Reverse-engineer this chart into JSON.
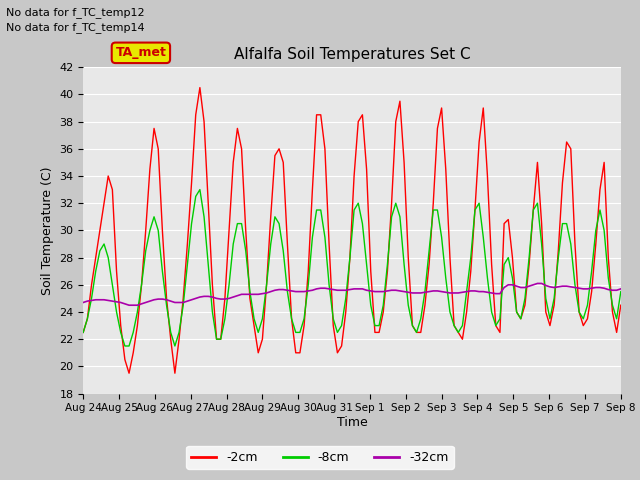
{
  "title": "Alfalfa Soil Temperatures Set C",
  "xlabel": "Time",
  "ylabel": "Soil Temperature (C)",
  "no_data_text": [
    "No data for f_TC_temp12",
    "No data for f_TC_temp14"
  ],
  "legend_label_box": "TA_met",
  "legend_box_facecolor": "#e8e800",
  "legend_box_edgecolor": "#cc0000",
  "legend_box_text_color": "#cc0000",
  "ylim": [
    18,
    42
  ],
  "yticks": [
    18,
    20,
    22,
    24,
    26,
    28,
    30,
    32,
    34,
    36,
    38,
    40,
    42
  ],
  "x_tick_labels": [
    "Aug 24",
    "Aug 25",
    "Aug 26",
    "Aug 27",
    "Aug 28",
    "Aug 29",
    "Aug 30",
    "Aug 31",
    "Sep 1",
    "Sep 2",
    "Sep 3",
    "Sep 4",
    "Sep 5",
    "Sep 6",
    "Sep 7",
    "Sep 8"
  ],
  "plot_bg_color": "#e8e8e8",
  "fig_bg_color": "#c8c8c8",
  "grid_color": "#ffffff",
  "line_colors": {
    "neg2cm": "#ff0000",
    "neg8cm": "#00cc00",
    "neg32cm": "#aa00aa"
  },
  "legend": [
    {
      "label": "-2cm",
      "color": "#ff0000"
    },
    {
      "label": "-8cm",
      "color": "#00cc00"
    },
    {
      "label": "-32cm",
      "color": "#aa00aa"
    }
  ],
  "neg2cm": [
    22.5,
    23.5,
    26.0,
    28.0,
    30.0,
    32.0,
    34.0,
    33.0,
    27.0,
    23.0,
    20.5,
    19.5,
    21.0,
    23.0,
    26.0,
    30.0,
    34.5,
    37.5,
    36.0,
    30.0,
    25.0,
    22.0,
    19.5,
    22.0,
    25.0,
    29.0,
    33.5,
    38.5,
    40.5,
    38.0,
    32.0,
    26.0,
    22.0,
    22.0,
    25.0,
    30.0,
    35.0,
    37.5,
    36.0,
    30.0,
    25.0,
    23.0,
    21.0,
    22.0,
    26.0,
    31.0,
    35.5,
    36.0,
    35.0,
    29.0,
    23.5,
    21.0,
    21.0,
    23.0,
    27.0,
    33.0,
    38.5,
    38.5,
    36.0,
    29.0,
    23.0,
    21.0,
    21.5,
    24.0,
    28.0,
    34.0,
    38.0,
    38.5,
    34.5,
    27.0,
    22.5,
    22.5,
    24.0,
    27.0,
    32.0,
    38.0,
    39.5,
    35.0,
    28.0,
    23.0,
    22.5,
    22.5,
    24.5,
    27.5,
    32.0,
    37.5,
    39.0,
    34.5,
    28.0,
    23.0,
    22.5,
    22.0,
    24.0,
    27.0,
    31.5,
    36.5,
    39.0,
    34.0,
    27.5,
    23.0,
    22.5,
    30.5,
    30.8,
    28.0,
    24.0,
    23.5,
    24.5,
    27.5,
    31.5,
    35.0,
    30.5,
    24.0,
    23.0,
    24.5,
    28.5,
    33.5,
    36.5,
    36.0,
    29.0,
    24.0,
    23.0,
    23.5,
    25.5,
    29.0,
    33.0,
    35.0,
    28.0,
    24.0,
    22.5,
    24.5
  ],
  "neg8cm": [
    22.5,
    23.5,
    25.0,
    27.0,
    28.5,
    29.0,
    28.0,
    26.0,
    24.0,
    22.5,
    21.5,
    21.5,
    22.5,
    24.0,
    26.0,
    28.5,
    30.0,
    31.0,
    30.0,
    27.0,
    24.5,
    22.5,
    21.5,
    22.5,
    24.5,
    27.5,
    30.5,
    32.5,
    33.0,
    31.0,
    27.5,
    24.0,
    22.0,
    22.0,
    23.5,
    26.0,
    29.0,
    30.5,
    30.5,
    28.5,
    25.5,
    23.5,
    22.5,
    23.5,
    26.0,
    29.0,
    31.0,
    30.5,
    28.5,
    25.5,
    23.5,
    22.5,
    22.5,
    23.5,
    26.0,
    29.5,
    31.5,
    31.5,
    29.5,
    26.0,
    23.5,
    22.5,
    23.0,
    25.0,
    28.0,
    31.5,
    32.0,
    30.5,
    27.5,
    24.5,
    23.0,
    23.0,
    24.5,
    27.5,
    31.0,
    32.0,
    31.0,
    27.5,
    24.5,
    23.0,
    22.5,
    23.5,
    25.5,
    28.5,
    31.5,
    31.5,
    29.5,
    26.5,
    24.0,
    23.0,
    22.5,
    23.0,
    25.5,
    28.0,
    31.5,
    32.0,
    29.5,
    26.5,
    24.0,
    23.0,
    23.5,
    27.5,
    28.0,
    26.5,
    24.0,
    23.5,
    25.0,
    28.0,
    31.5,
    32.0,
    29.0,
    25.0,
    23.5,
    25.0,
    28.0,
    30.5,
    30.5,
    29.0,
    26.0,
    24.0,
    23.5,
    24.5,
    27.0,
    30.0,
    31.5,
    30.0,
    26.5,
    24.5,
    23.5,
    25.5
  ],
  "neg32cm": [
    24.7,
    24.8,
    24.85,
    24.9,
    24.9,
    24.9,
    24.85,
    24.8,
    24.75,
    24.7,
    24.6,
    24.5,
    24.5,
    24.5,
    24.6,
    24.7,
    24.8,
    24.9,
    24.95,
    24.95,
    24.9,
    24.8,
    24.7,
    24.7,
    24.7,
    24.8,
    24.9,
    25.0,
    25.1,
    25.15,
    25.15,
    25.1,
    25.0,
    24.95,
    24.95,
    25.0,
    25.1,
    25.2,
    25.3,
    25.3,
    25.3,
    25.3,
    25.3,
    25.35,
    25.4,
    25.5,
    25.6,
    25.65,
    25.65,
    25.6,
    25.55,
    25.5,
    25.5,
    25.5,
    25.55,
    25.6,
    25.7,
    25.75,
    25.75,
    25.7,
    25.65,
    25.6,
    25.6,
    25.6,
    25.65,
    25.7,
    25.7,
    25.7,
    25.6,
    25.55,
    25.5,
    25.5,
    25.5,
    25.55,
    25.6,
    25.6,
    25.55,
    25.5,
    25.45,
    25.4,
    25.4,
    25.4,
    25.45,
    25.5,
    25.55,
    25.55,
    25.5,
    25.45,
    25.4,
    25.4,
    25.4,
    25.45,
    25.5,
    25.55,
    25.55,
    25.5,
    25.5,
    25.45,
    25.4,
    25.35,
    25.35,
    25.8,
    26.0,
    26.0,
    25.9,
    25.8,
    25.8,
    25.9,
    26.0,
    26.1,
    26.1,
    25.95,
    25.85,
    25.8,
    25.85,
    25.9,
    25.9,
    25.85,
    25.8,
    25.75,
    25.7,
    25.7,
    25.75,
    25.8,
    25.8,
    25.75,
    25.65,
    25.6,
    25.6,
    25.7
  ]
}
